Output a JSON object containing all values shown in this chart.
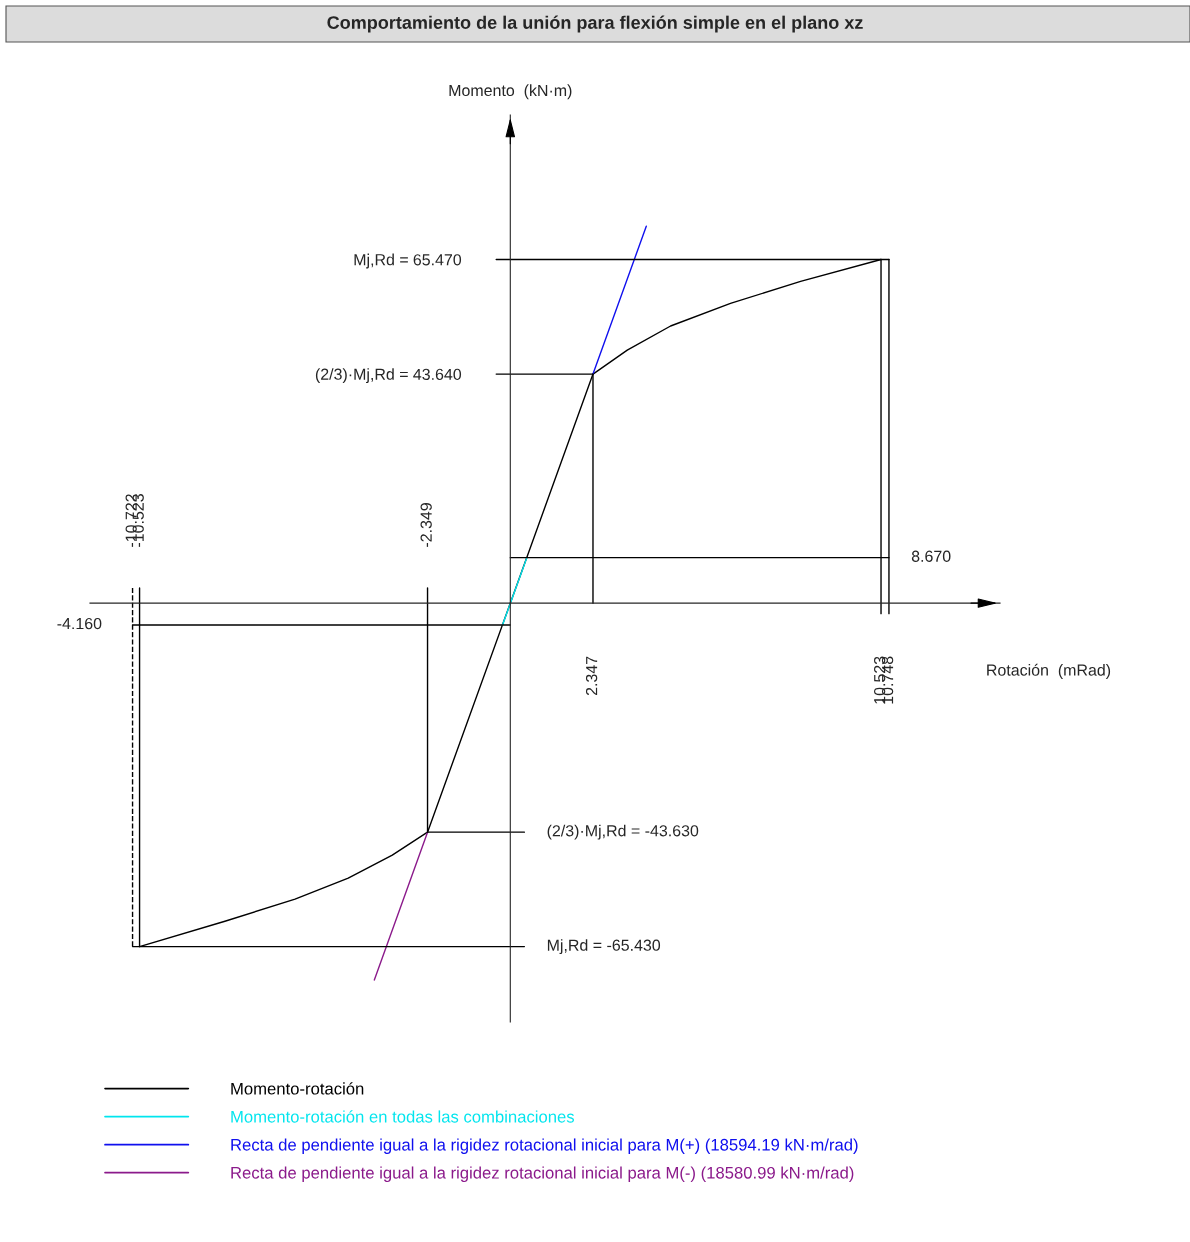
{
  "chart_data": {
    "type": "line",
    "title": "Comportamiento de la unión para flexión simple en el plano xz",
    "xlabel": "Rotación  (mRad)",
    "ylabel": "Momento  (kN·m)",
    "xlim": [
      -11.93,
      13.9
    ],
    "ylim": [
      -79.8,
      93
    ],
    "xticks": [
      2.347,
      10.523,
      10.748
    ],
    "x2lim": [
      -11.93,
      13.9
    ],
    "x2ticks": [
      -10.722,
      -10.523,
      -2.349
    ],
    "yticks": [
      {
        "value": 65.47,
        "label": "65.470"
      },
      {
        "value": 43.64,
        "label": "43.640"
      }
    ],
    "annotations": [
      "Mj,Rd =",
      "(2/3)·Mj,Rd =",
      {
        "text": "8.670",
        "x": 10.748,
        "y": 8.67
      },
      {
        "text": "-4.160",
        "x": -10.722,
        "y": -4.16
      },
      {
        "text": "(2/3)·Mj,Rd = -43.630",
        "x": 0.4,
        "y": -43.63
      },
      {
        "text": "Mj,Rd = -65.430",
        "x": 0.4,
        "y": -65.43
      }
    ],
    "grid": false,
    "legend": "bottom",
    "series": [
      {
        "name": "Momento-rotación",
        "color": "#000000",
        "x": [
          -10.523,
          -8.1,
          -6.11,
          -4.6,
          -3.35,
          -2.349,
          0,
          2.347,
          3.32,
          4.55,
          6.25,
          8.24,
          10.523
        ],
        "values": [
          -65.43,
          -60.6,
          -56.4,
          -52.4,
          -48.0,
          -43.63,
          0,
          43.64,
          48.2,
          52.8,
          57.1,
          61.3,
          65.47
        ]
      },
      {
        "name": "Momento-rotación en todas las combinaciones",
        "color": "#00e5ee",
        "x": [
          -0.22,
          0.47
        ],
        "values": [
          -4.16,
          8.67
        ]
      },
      {
        "name": "Recta de pendiente igual a la rigidez rotacional inicial para M(+) (18594.19 kN·m/rad)",
        "color": "#1010ee",
        "x": [
          2.347,
          3.86
        ],
        "values": [
          43.64,
          71.8
        ]
      },
      {
        "name": "Recta de pendiente igual a la rigidez rotacional inicial para M(-) (18580.99 kN·m/rad)",
        "color": "#8b1a8b",
        "x": [
          -2.349,
          -3.86
        ],
        "values": [
          -43.63,
          -71.8
        ]
      },
      {
        "color": "#000000",
        "x": [
          -0.4,
          10.748
        ],
        "values": [
          65.47,
          65.47
        ]
      },
      {
        "color": "#000000",
        "x": [
          -0.4,
          2.347
        ],
        "values": [
          43.64,
          43.64
        ]
      },
      {
        "color": "#000000",
        "x": [
          0,
          10.748
        ],
        "values": [
          8.67,
          8.67
        ]
      },
      {
        "color": "#000000",
        "x": [
          -10.722,
          0
        ],
        "values": [
          -4.16,
          -4.16
        ]
      },
      {
        "color": "#000000",
        "x": [
          -2.349,
          0.4
        ],
        "values": [
          -43.63,
          -43.63
        ]
      },
      {
        "color": "#000000",
        "x": [
          -10.722,
          0.4
        ],
        "values": [
          -65.43,
          -65.43
        ]
      },
      {
        "color": "#000000",
        "x": [
          2.347,
          2.347
        ],
        "values": [
          0,
          43.64
        ]
      },
      {
        "color": "#000000",
        "x": [
          10.523,
          10.523
        ],
        "values": [
          -2,
          65.47
        ]
      },
      {
        "color": "#000000",
        "x": [
          10.748,
          10.748
        ],
        "values": [
          -2,
          65.47
        ]
      },
      {
        "color": "#000000",
        "x": [
          -2.349,
          -2.349
        ],
        "values": [
          2.9,
          -43.63
        ]
      },
      {
        "color": "#000000",
        "x": [
          -10.523,
          -10.523
        ],
        "values": [
          2.9,
          -65.43
        ]
      },
      {
        "color": "#000000",
        "x": [
          -10.722,
          -10.722
        ],
        "values": [
          2.9,
          -65.43
        ],
        "line_style": "dashed"
      }
    ]
  }
}
